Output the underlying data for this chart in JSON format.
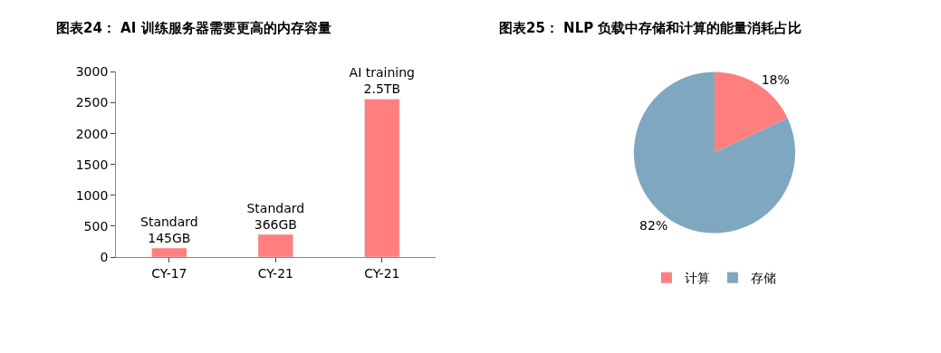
{
  "chart_data": [
    {
      "type": "bar",
      "title": "图表24： AI 训练服务器需要更高的内存容量",
      "categories": [
        "CY-17",
        "CY-21",
        "CY-21"
      ],
      "values": [
        145,
        366,
        2560
      ],
      "color": "#ff7f7f",
      "value_labels": [
        "Standard\n145GB",
        "Standard\n366GB",
        "AI training\n2.5TB"
      ],
      "ylim": [
        0,
        3000
      ],
      "yticks": [
        0,
        500,
        1000,
        1500,
        2000,
        2500,
        3000
      ]
    },
    {
      "type": "pie",
      "title": "图表25： NLP 负载中存储和计算的能量消耗占比",
      "categories": [
        "计算",
        "存储"
      ],
      "values": [
        18,
        82
      ],
      "colors": [
        "#ff7f7f",
        "#7fa7c0"
      ],
      "value_labels": [
        "18%",
        "82%"
      ],
      "legend": "bottom"
    }
  ]
}
